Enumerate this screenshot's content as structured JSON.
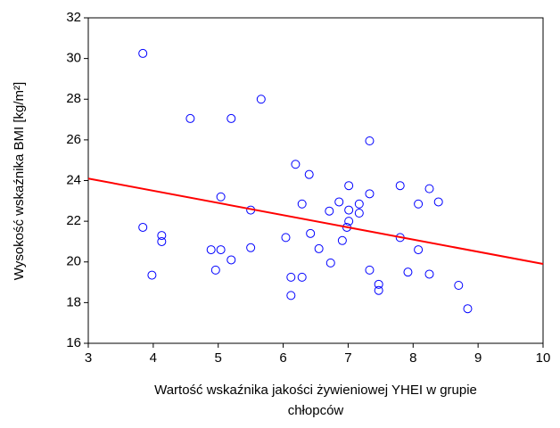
{
  "chart_data": {
    "type": "scatter",
    "xlabel": [
      "Wartość wskaźnika jakości żywieniowej YHEI w grupie",
      "chłopców"
    ],
    "ylabel": "Wysokość wskaźnika BMI [kg/m²]",
    "xlim": [
      3,
      10
    ],
    "xticks": [
      3,
      4,
      5,
      6,
      7,
      8,
      9,
      10
    ],
    "ylim": [
      16,
      32
    ],
    "yticks": [
      16,
      18,
      20,
      22,
      24,
      26,
      28,
      30,
      32
    ],
    "grid": false,
    "series": [
      {
        "color": "#0000ff",
        "marker": "circle",
        "x": [
          3.84,
          3.84,
          3.98,
          4.13,
          4.13,
          4.57,
          4.89,
          4.96,
          5.04,
          5.04,
          5.2,
          5.2,
          5.5,
          5.5,
          5.66,
          6.04,
          6.12,
          6.12,
          6.19,
          6.29,
          6.29,
          6.4,
          6.42,
          6.55,
          6.71,
          6.73,
          6.86,
          6.91,
          6.98,
          7.01,
          7.01,
          7.01,
          7.17,
          7.17,
          7.33,
          7.33,
          7.33,
          7.47,
          7.47,
          7.8,
          7.8,
          7.92,
          8.08,
          8.08,
          8.25,
          8.25,
          8.39,
          8.7,
          8.84
        ],
        "values": [
          30.25,
          21.7,
          19.35,
          21.3,
          21.0,
          27.05,
          20.6,
          19.6,
          23.2,
          20.6,
          20.1,
          27.05,
          22.55,
          20.7,
          28.0,
          21.2,
          19.25,
          18.35,
          24.8,
          22.85,
          19.25,
          24.3,
          21.4,
          20.65,
          22.5,
          19.95,
          22.95,
          21.05,
          21.7,
          22.55,
          22.0,
          23.75,
          22.85,
          22.4,
          25.95,
          23.35,
          19.6,
          18.9,
          18.6,
          23.75,
          21.2,
          19.5,
          22.85,
          20.6,
          23.6,
          19.4,
          22.95,
          18.85,
          17.7
        ]
      },
      {
        "color": "#ff0000",
        "marker": "line",
        "x": [
          3,
          10
        ],
        "values": [
          24.1,
          19.9
        ]
      }
    ]
  }
}
